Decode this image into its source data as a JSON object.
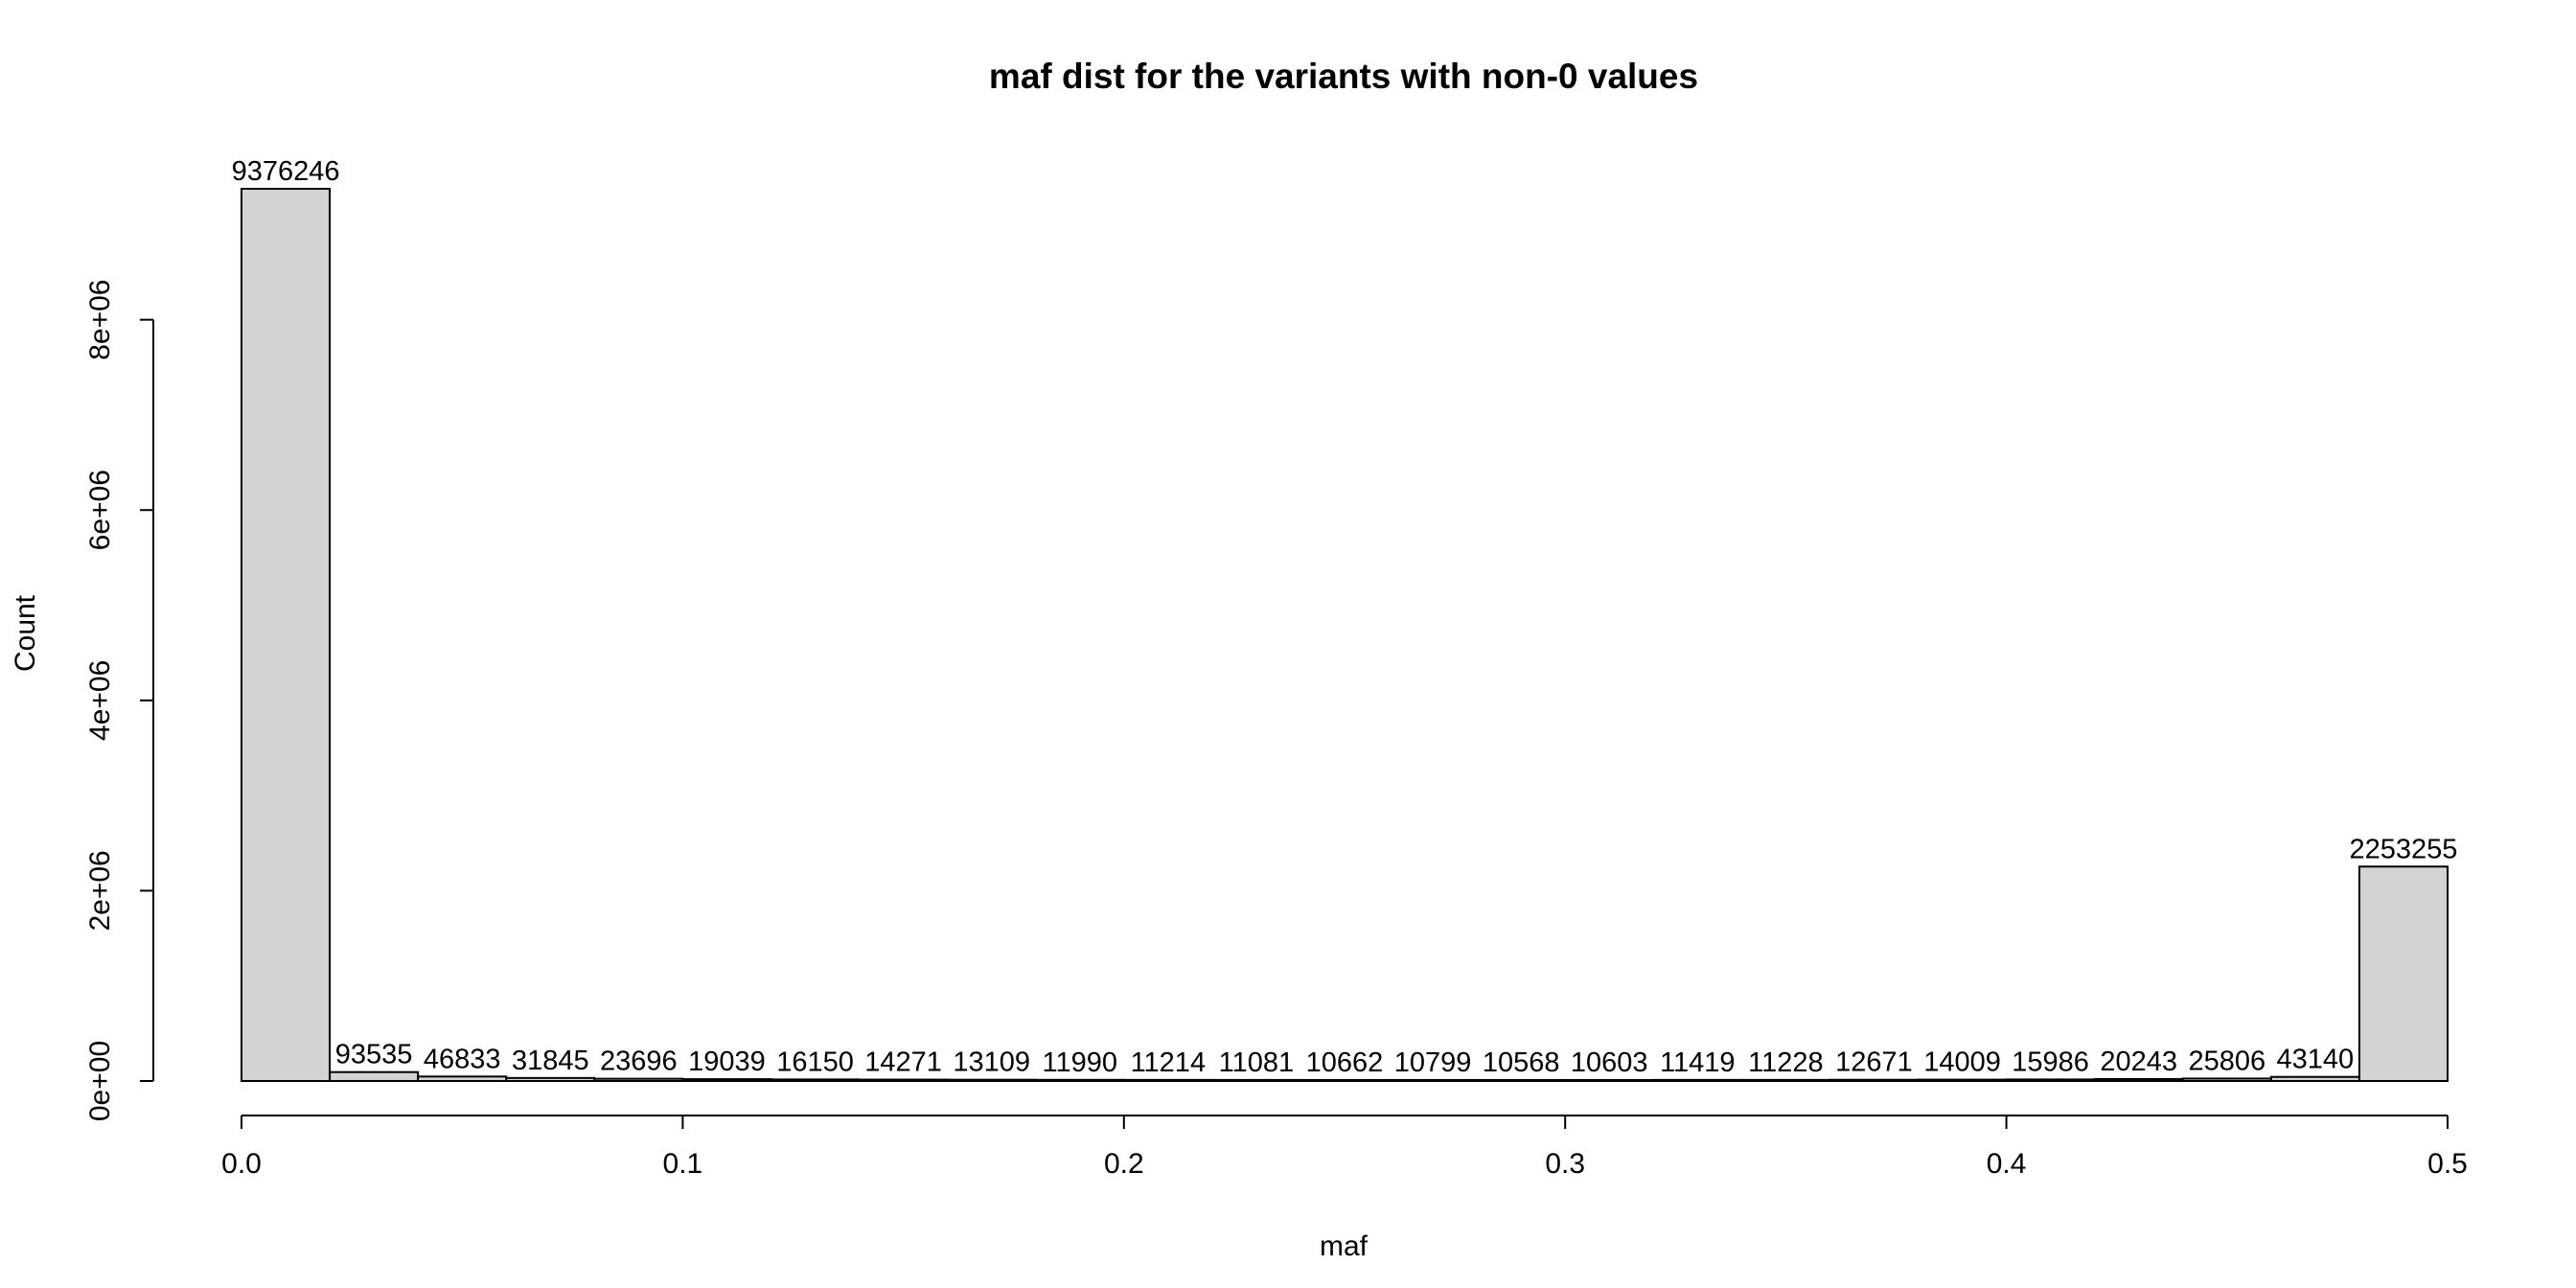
{
  "chart_data": {
    "type": "bar",
    "title": "maf dist for the variants with non-0 values",
    "xlabel": "maf",
    "ylabel": "Count",
    "bin_width": 0.02,
    "bins": [
      {
        "x0": 0.0,
        "x1": 0.02,
        "value": 9376246,
        "label": "9376246"
      },
      {
        "x0": 0.02,
        "x1": 0.04,
        "value": 93535,
        "label": "93535"
      },
      {
        "x0": 0.04,
        "x1": 0.06,
        "value": 46833,
        "label": "46833"
      },
      {
        "x0": 0.06,
        "x1": 0.08,
        "value": 31845,
        "label": "31845"
      },
      {
        "x0": 0.08,
        "x1": 0.1,
        "value": 23696,
        "label": "23696"
      },
      {
        "x0": 0.1,
        "x1": 0.12,
        "value": 19039,
        "label": "19039"
      },
      {
        "x0": 0.12,
        "x1": 0.14,
        "value": 16150,
        "label": "16150"
      },
      {
        "x0": 0.14,
        "x1": 0.16,
        "value": 14271,
        "label": "14271"
      },
      {
        "x0": 0.16,
        "x1": 0.18,
        "value": 13109,
        "label": "13109"
      },
      {
        "x0": 0.18,
        "x1": 0.2,
        "value": 11990,
        "label": "11990"
      },
      {
        "x0": 0.2,
        "x1": 0.22,
        "value": 11214,
        "label": "11214"
      },
      {
        "x0": 0.22,
        "x1": 0.24,
        "value": 11081,
        "label": "11081"
      },
      {
        "x0": 0.24,
        "x1": 0.26,
        "value": 10662,
        "label": "10662"
      },
      {
        "x0": 0.26,
        "x1": 0.28,
        "value": 10799,
        "label": "10799"
      },
      {
        "x0": 0.28,
        "x1": 0.3,
        "value": 10568,
        "label": "10568"
      },
      {
        "x0": 0.3,
        "x1": 0.32,
        "value": 10603,
        "label": "10603"
      },
      {
        "x0": 0.32,
        "x1": 0.34,
        "value": 11419,
        "label": "11419"
      },
      {
        "x0": 0.34,
        "x1": 0.36,
        "value": 11228,
        "label": "11228"
      },
      {
        "x0": 0.36,
        "x1": 0.38,
        "value": 12671,
        "label": "12671"
      },
      {
        "x0": 0.38,
        "x1": 0.4,
        "value": 14009,
        "label": "14009"
      },
      {
        "x0": 0.4,
        "x1": 0.42,
        "value": 15986,
        "label": "15986"
      },
      {
        "x0": 0.42,
        "x1": 0.44,
        "value": 20243,
        "label": "20243"
      },
      {
        "x0": 0.44,
        "x1": 0.46,
        "value": 25806,
        "label": "25806"
      },
      {
        "x0": 0.46,
        "x1": 0.48,
        "value": 43140,
        "label": "43140"
      },
      {
        "x0": 0.48,
        "x1": 0.5,
        "value": 2253255,
        "label": "2253255"
      }
    ],
    "xlim": [
      0,
      0.5
    ],
    "ylim": [
      0,
      9376246
    ],
    "x_ticks": [
      {
        "value": 0.0,
        "label": "0.0"
      },
      {
        "value": 0.1,
        "label": "0.1"
      },
      {
        "value": 0.2,
        "label": "0.2"
      },
      {
        "value": 0.3,
        "label": "0.3"
      },
      {
        "value": 0.4,
        "label": "0.4"
      },
      {
        "value": 0.5,
        "label": "0.5"
      }
    ],
    "y_ticks": [
      {
        "value": 0,
        "label": "0e+00"
      },
      {
        "value": 2000000,
        "label": "2e+06"
      },
      {
        "value": 4000000,
        "label": "4e+06"
      },
      {
        "value": 6000000,
        "label": "6e+06"
      },
      {
        "value": 8000000,
        "label": "8e+06"
      }
    ],
    "bar_fill": "#d3d3d3",
    "bar_stroke": "#000000",
    "grid": false,
    "legend": "none"
  }
}
